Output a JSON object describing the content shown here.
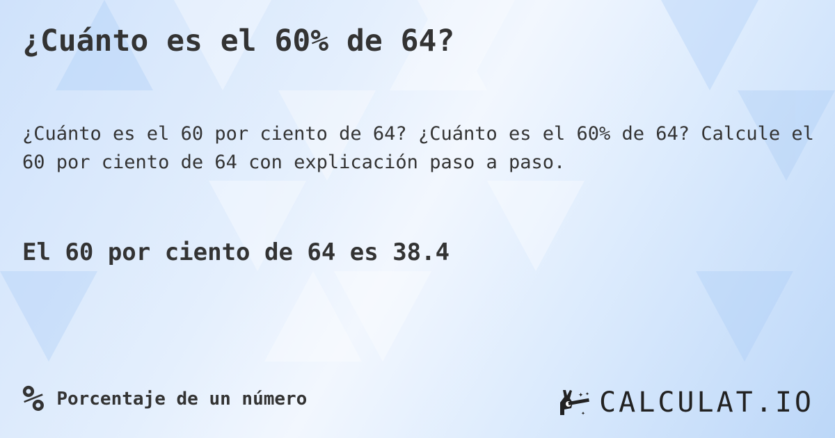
{
  "title": "¿Cuánto es el 60% de 64?",
  "description": "¿Cuánto es el 60 por ciento de 64? ¿Cuánto es el 60% de 64? Calcule el 60 por ciento de 64 con explicación paso a paso.",
  "result": "El 60 por ciento de 64 es 38.4",
  "footer": {
    "icon": "percent-icon",
    "icon_glyph": "%",
    "category": "Porcentaje de un número"
  },
  "logo": {
    "text": "CALCULAT.IO",
    "icon": "magic-hand-icon"
  },
  "colors": {
    "text": "#333333",
    "background": "#dcebfd"
  }
}
